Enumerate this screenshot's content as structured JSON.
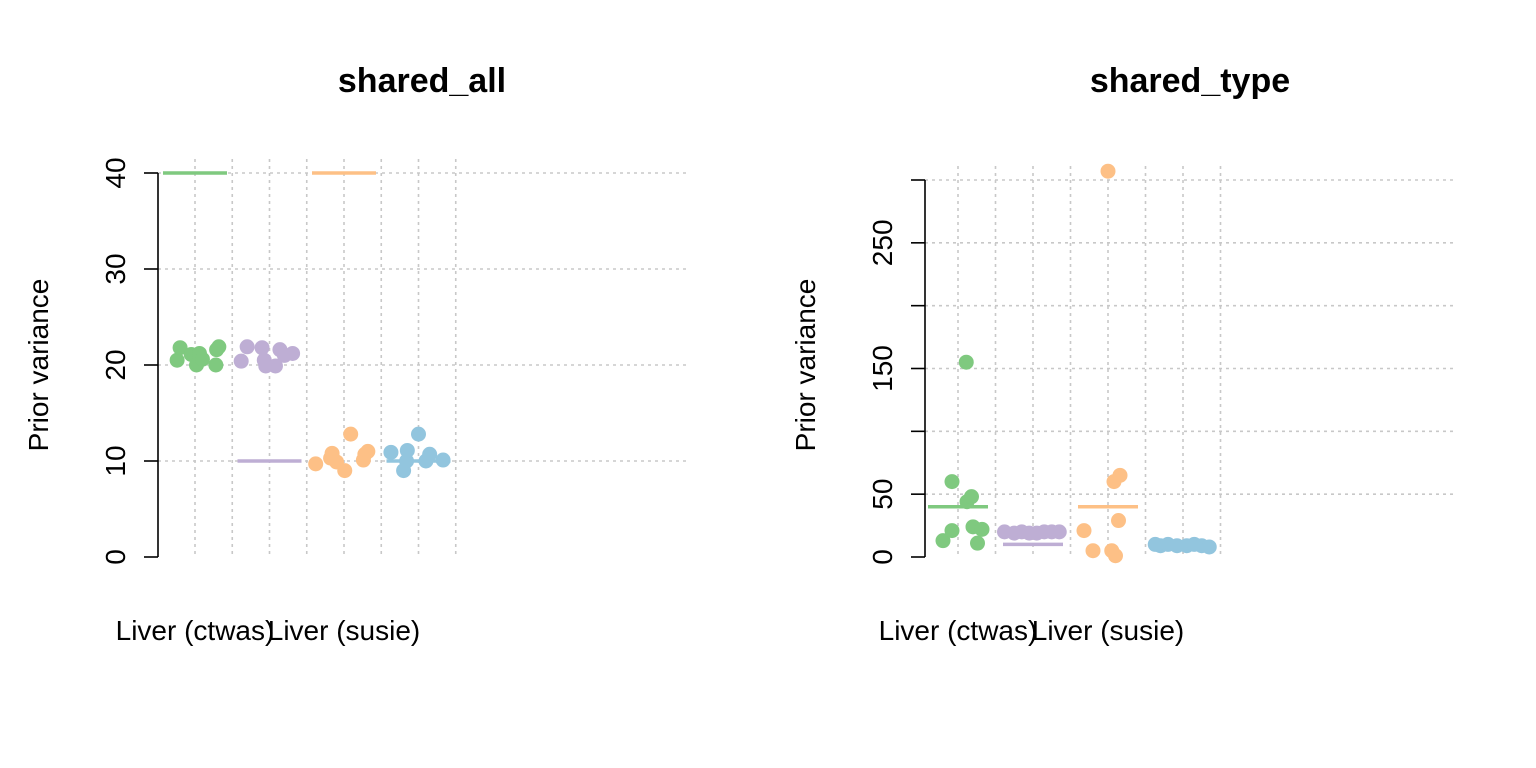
{
  "chart_data": [
    {
      "type": "scatter",
      "title": "shared_all",
      "ylabel": "Prior variance",
      "ylim": [
        0,
        40
      ],
      "yticks": [
        0,
        10,
        20,
        30,
        40
      ],
      "ytick_labels": [
        "0",
        "10",
        "20",
        "30",
        "40"
      ],
      "grid": true,
      "categories": [
        "Liver (ctwas)",
        "",
        "Liver (susie)",
        ""
      ],
      "category_labels": [
        {
          "category": 1,
          "text": "Liver (ctwas)"
        },
        {
          "category": 3,
          "text": "Liver (susie)"
        }
      ],
      "colors": [
        "#7fc97f",
        "#beaed4",
        "#fdc086",
        "#92c5de"
      ],
      "series": [
        {
          "category": 1,
          "color": "#7fc97f",
          "mean": 40,
          "points": [
            {
              "dx": -0.24,
              "y": 20.5
            },
            {
              "dx": -0.2,
              "y": 21.8
            },
            {
              "dx": -0.05,
              "y": 21.1
            },
            {
              "dx": 0.02,
              "y": 20.0
            },
            {
              "dx": 0.06,
              "y": 21.2
            },
            {
              "dx": 0.1,
              "y": 20.6
            },
            {
              "dx": 0.28,
              "y": 20.0
            },
            {
              "dx": 0.29,
              "y": 21.6
            },
            {
              "dx": 0.32,
              "y": 21.9
            }
          ]
        },
        {
          "category": 2,
          "color": "#beaed4",
          "mean": 10,
          "points": [
            {
              "dx": -0.38,
              "y": 20.4
            },
            {
              "dx": -0.3,
              "y": 21.9
            },
            {
              "dx": -0.1,
              "y": 21.8
            },
            {
              "dx": -0.07,
              "y": 20.5
            },
            {
              "dx": -0.05,
              "y": 19.9
            },
            {
              "dx": 0.08,
              "y": 19.9
            },
            {
              "dx": 0.14,
              "y": 21.6
            },
            {
              "dx": 0.2,
              "y": 21.0
            },
            {
              "dx": 0.31,
              "y": 21.2
            }
          ]
        },
        {
          "category": 3,
          "color": "#fdc086",
          "mean": 40,
          "points": [
            {
              "dx": -0.38,
              "y": 9.7
            },
            {
              "dx": -0.18,
              "y": 10.3
            },
            {
              "dx": -0.16,
              "y": 10.8
            },
            {
              "dx": -0.1,
              "y": 9.9
            },
            {
              "dx": 0.01,
              "y": 9.0
            },
            {
              "dx": 0.09,
              "y": 12.8
            },
            {
              "dx": 0.26,
              "y": 10.1
            },
            {
              "dx": 0.28,
              "y": 10.7
            },
            {
              "dx": 0.32,
              "y": 11.0
            }
          ]
        },
        {
          "category": 4,
          "color": "#92c5de",
          "mean": 10,
          "points": [
            {
              "dx": -0.37,
              "y": 10.9
            },
            {
              "dx": -0.2,
              "y": 9.0
            },
            {
              "dx": -0.16,
              "y": 10.0
            },
            {
              "dx": -0.15,
              "y": 11.1
            },
            {
              "dx": 0.0,
              "y": 12.8
            },
            {
              "dx": 0.1,
              "y": 10.0
            },
            {
              "dx": 0.15,
              "y": 10.7
            },
            {
              "dx": 0.33,
              "y": 10.1
            }
          ]
        }
      ]
    },
    {
      "type": "scatter",
      "title": "shared_type",
      "ylabel": "Prior variance",
      "ylim": [
        0,
        300
      ],
      "yticks": [
        0,
        50,
        100,
        150,
        200,
        250,
        300
      ],
      "ytick_labels": [
        "0",
        "50",
        "",
        "150",
        "",
        "250",
        ""
      ],
      "grid": true,
      "categories": [
        "Liver (ctwas)",
        "",
        "Liver (susie)",
        ""
      ],
      "category_labels": [
        {
          "category": 1,
          "text": "Liver (ctwas)"
        },
        {
          "category": 3,
          "text": "Liver (susie)"
        }
      ],
      "colors": [
        "#7fc97f",
        "#beaed4",
        "#fdc086",
        "#92c5de"
      ],
      "series": [
        {
          "category": 1,
          "color": "#7fc97f",
          "mean": 40,
          "points": [
            {
              "dx": -0.2,
              "y": 13
            },
            {
              "dx": -0.08,
              "y": 21
            },
            {
              "dx": -0.08,
              "y": 60
            },
            {
              "dx": 0.12,
              "y": 44
            },
            {
              "dx": 0.11,
              "y": 155
            },
            {
              "dx": 0.18,
              "y": 48
            },
            {
              "dx": 0.2,
              "y": 24
            },
            {
              "dx": 0.26,
              "y": 11
            },
            {
              "dx": 0.32,
              "y": 22
            }
          ]
        },
        {
          "category": 2,
          "color": "#beaed4",
          "mean": 10,
          "points": [
            {
              "dx": -0.38,
              "y": 20
            },
            {
              "dx": -0.25,
              "y": 19
            },
            {
              "dx": -0.15,
              "y": 20
            },
            {
              "dx": -0.05,
              "y": 19
            },
            {
              "dx": 0.05,
              "y": 19
            },
            {
              "dx": 0.15,
              "y": 20
            },
            {
              "dx": 0.25,
              "y": 20
            },
            {
              "dx": 0.35,
              "y": 20
            }
          ]
        },
        {
          "category": 3,
          "color": "#fdc086",
          "mean": 40,
          "points": [
            {
              "dx": -0.32,
              "y": 21
            },
            {
              "dx": -0.2,
              "y": 5
            },
            {
              "dx": 0.0,
              "y": 307
            },
            {
              "dx": 0.05,
              "y": 5
            },
            {
              "dx": 0.08,
              "y": 60
            },
            {
              "dx": 0.1,
              "y": 1
            },
            {
              "dx": 0.14,
              "y": 29
            },
            {
              "dx": 0.16,
              "y": 65
            }
          ]
        },
        {
          "category": 4,
          "color": "#92c5de",
          "mean": 10,
          "points": [
            {
              "dx": -0.37,
              "y": 10
            },
            {
              "dx": -0.3,
              "y": 9
            },
            {
              "dx": -0.2,
              "y": 10
            },
            {
              "dx": -0.08,
              "y": 9
            },
            {
              "dx": 0.05,
              "y": 9
            },
            {
              "dx": 0.15,
              "y": 10
            },
            {
              "dx": 0.25,
              "y": 9
            },
            {
              "dx": 0.35,
              "y": 8
            }
          ]
        }
      ]
    }
  ]
}
